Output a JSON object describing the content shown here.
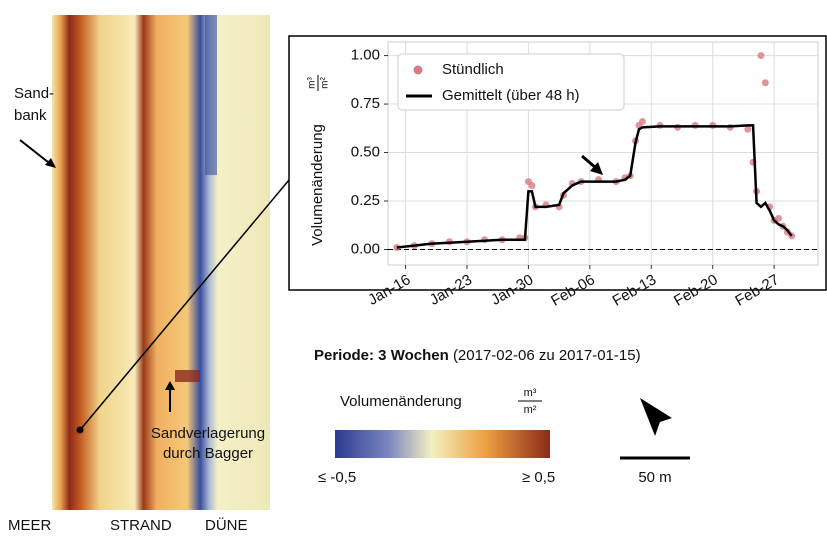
{
  "chart_data": {
    "type": "line",
    "y_label": "Volumenänderung",
    "y_label_unit": [
      "m³",
      "m²"
    ],
    "x": [
      15,
      17,
      19,
      21,
      23,
      25,
      27,
      29,
      29.6,
      30,
      30.4,
      30.8,
      32,
      33.5,
      34,
      35,
      36,
      38,
      40,
      41,
      41.6,
      42.2,
      42.6,
      43,
      45,
      47,
      49,
      51,
      53,
      55,
      55.6,
      56,
      56.5,
      57,
      57.5,
      58,
      58.5,
      59,
      59.5,
      60
    ],
    "series": [
      {
        "name": "Stündlich",
        "kind": "scatter",
        "color": "#d77a86",
        "values": [
          0.01,
          0.02,
          0.03,
          0.04,
          0.04,
          0.05,
          0.05,
          0.06,
          0.06,
          0.35,
          0.33,
          0.22,
          0.23,
          0.22,
          0.28,
          0.34,
          0.35,
          0.36,
          0.35,
          0.37,
          0.38,
          0.56,
          0.64,
          0.66,
          0.64,
          0.63,
          0.64,
          0.64,
          0.63,
          0.62,
          0.45,
          0.3,
          1.0,
          0.86,
          0.22,
          0.15,
          0.16,
          0.12,
          0.09,
          0.07
        ]
      },
      {
        "name": "Gemittelt (über 48 h)",
        "kind": "line",
        "color": "#000000",
        "values": [
          0.01,
          0.02,
          0.03,
          0.035,
          0.04,
          0.045,
          0.05,
          0.05,
          0.05,
          0.3,
          0.3,
          0.22,
          0.22,
          0.23,
          0.29,
          0.33,
          0.35,
          0.35,
          0.35,
          0.36,
          0.38,
          0.55,
          0.62,
          0.63,
          0.635,
          0.635,
          0.635,
          0.635,
          0.635,
          0.64,
          0.64,
          0.24,
          0.22,
          0.24,
          0.2,
          0.15,
          0.13,
          0.12,
          0.1,
          0.07
        ]
      }
    ],
    "xlim": [
      14,
      63
    ],
    "xticks": [
      {
        "value": 16,
        "label": "Jan-16"
      },
      {
        "value": 23,
        "label": "Jan-23"
      },
      {
        "value": 30,
        "label": "Jan-30"
      },
      {
        "value": 37,
        "label": "Feb-06"
      },
      {
        "value": 44,
        "label": "Feb-13"
      },
      {
        "value": 51,
        "label": "Feb-20"
      },
      {
        "value": 58,
        "label": "Feb-27"
      }
    ],
    "ylim": [
      -0.08,
      1.07
    ],
    "yticks": [
      {
        "value": 0,
        "label": "0.00"
      },
      {
        "value": 0.25,
        "label": "0.25"
      },
      {
        "value": 0.5,
        "label": "0.50"
      },
      {
        "value": 0.75,
        "label": "0.75"
      },
      {
        "value": 1,
        "label": "1.00"
      }
    ],
    "reference_line": 0,
    "grid": true,
    "legend": "upper left"
  },
  "map": {
    "sandbank": [
      "Sand-",
      "bank"
    ],
    "dredging": [
      "Sandverlagerung",
      "durch Bagger"
    ],
    "zones": [
      "MEER",
      "STRAND",
      "DÜNE"
    ]
  },
  "period": {
    "bold": "Periode: 3 Wochen",
    "rest": "(2017-02-06 zu 2017-01-15)"
  },
  "colorbar": {
    "title": "Volumenänderung",
    "unit": [
      "m³",
      "m²"
    ],
    "min_label": "≤ -0,5",
    "max_label": "≥ 0,5"
  },
  "scale_bar": "50 m"
}
